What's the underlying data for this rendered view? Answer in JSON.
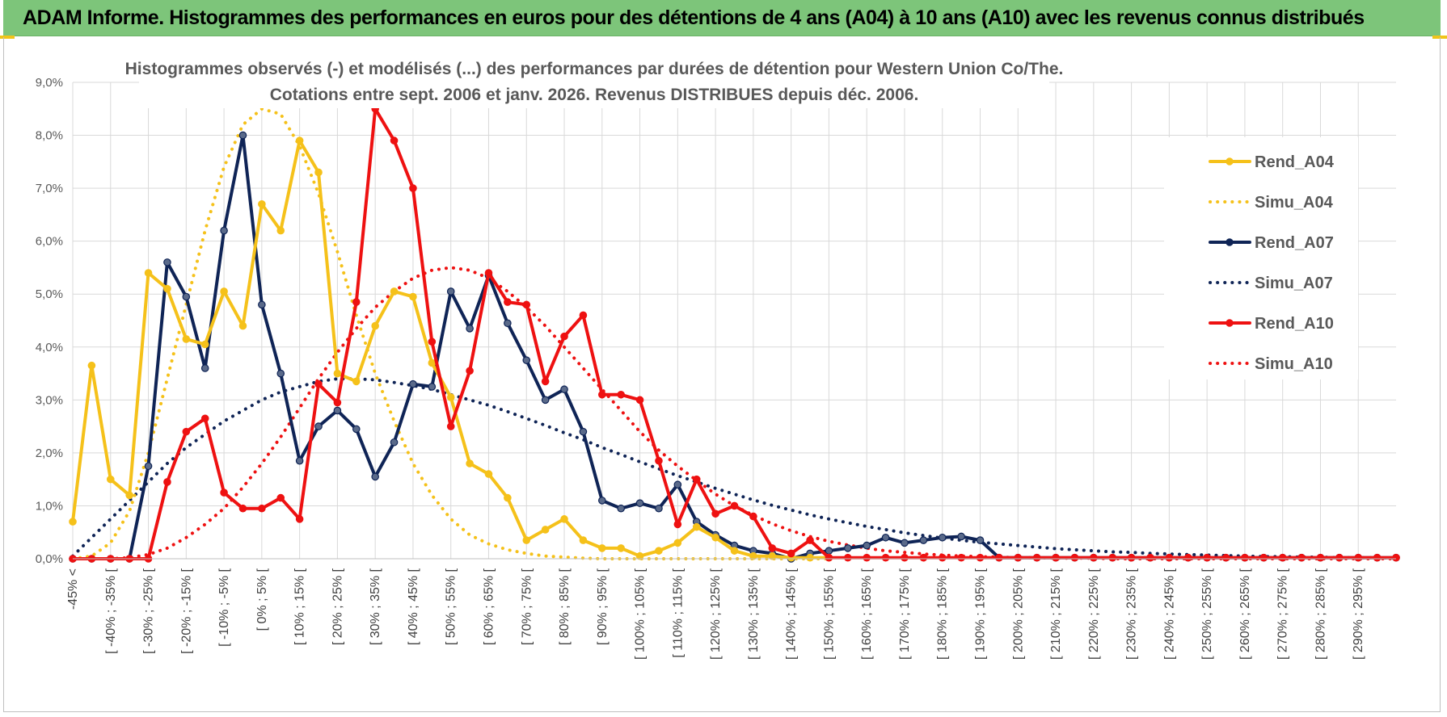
{
  "header": {
    "title": "ADAM Informe. Histogrammes des performances en euros pour des détentions de 4 ans (A04) à 10 ans (A10) avec les revenus connus distribués"
  },
  "chart_data": {
    "type": "line",
    "title_line1": "Histogrammes observés (-) et modélisés (...) des performances par durées de détention pour Western Union Co/The.",
    "title_line2": "Cotations entre sept. 2006 et janv. 2026. Revenus DISTRIBUES depuis déc. 2006.",
    "xlabel": "",
    "ylabel": "",
    "ylim": [
      0,
      9
    ],
    "yticks": [
      "0,0%",
      "1,0%",
      "2,0%",
      "3,0%",
      "4,0%",
      "5,0%",
      "6,0%",
      "7,0%",
      "8,0%",
      "9,0%"
    ],
    "grid": true,
    "legend_position": "right",
    "x_labels": [
      "-45% <",
      "[ -40% ; -35% [",
      "[ -30% ; -25% [",
      "[ -20% ; -15% [",
      "[ -10% ; -5% [",
      "[ 0% ; 5% [",
      "[ 10% ; 15% [",
      "[ 20% ; 25% [",
      "[ 30% ; 35% [",
      "[ 40% ; 45% [",
      "[ 50% ; 55% [",
      "[ 60% ; 65% [",
      "[ 70% ; 75% [",
      "[ 80% ; 85% [",
      "[ 90% ; 95% [",
      "[ 100% ; 105% [",
      "[ 110% ; 115% [",
      "[ 120% ; 125% [",
      "[ 130% ; 135% [",
      "[ 140% ; 145% [",
      "[ 150% ; 155% [",
      "[ 160% ; 165% [",
      "[ 170% ; 175% [",
      "[ 180% ; 185% [",
      "[ 190% ; 195% [",
      "[ 200% ; 205% [",
      "[ 210% ; 215% [",
      "[ 220% ; 225% [",
      "[ 230% ; 235% [",
      "[ 240% ; 245% [",
      "[ 250% ; 255% [",
      "[ 260% ; 265% [",
      "[ 270% ; 275% [",
      "[ 280% ; 285% [",
      "[ 290% ; 295% ["
    ],
    "series": [
      {
        "name": "Rend_A04",
        "color": "#f5c11a",
        "style": "solid",
        "markers": true,
        "values": [
          0.7,
          3.65,
          1.5,
          1.2,
          5.4,
          5.1,
          4.15,
          4.05,
          5.05,
          4.4,
          6.7,
          6.2,
          7.9,
          7.3,
          3.5,
          3.35,
          4.4,
          5.05,
          4.95,
          3.7,
          3.05,
          1.8,
          1.6,
          1.15,
          0.35,
          0.55,
          0.75,
          0.35,
          0.2,
          0.2,
          0.05,
          0.15,
          0.3,
          0.6,
          0.4,
          0.15,
          0.05,
          0.05,
          0.02,
          0.02,
          0.02
        ]
      },
      {
        "name": "Simu_A04",
        "color": "#f5c11a",
        "style": "dotted",
        "markers": false,
        "values": [
          0.0,
          0.05,
          0.3,
          0.9,
          2.0,
          3.4,
          4.8,
          6.2,
          7.4,
          8.2,
          8.5,
          8.4,
          7.8,
          6.9,
          5.8,
          4.6,
          3.5,
          2.6,
          1.8,
          1.2,
          0.75,
          0.45,
          0.28,
          0.17,
          0.1,
          0.05,
          0.03,
          0.01,
          0.0,
          0.0,
          0.0,
          0.0,
          0.0,
          0.0,
          0.0,
          0.0,
          0.0,
          0.0,
          0.0,
          0.0,
          0.0
        ]
      },
      {
        "name": "Rend_A07",
        "color": "#0f2456",
        "style": "solid",
        "markers": true,
        "values": [
          0.0,
          0.0,
          0.0,
          0.0,
          1.75,
          5.6,
          4.95,
          3.6,
          6.2,
          8.0,
          4.8,
          3.5,
          1.85,
          2.5,
          2.8,
          2.45,
          1.55,
          2.2,
          3.3,
          3.25,
          5.05,
          4.35,
          5.35,
          4.45,
          3.75,
          3.0,
          3.2,
          2.4,
          1.1,
          0.95,
          1.05,
          0.95,
          1.4,
          0.7,
          0.45,
          0.25,
          0.15,
          0.1,
          0.0,
          0.1,
          0.15,
          0.2,
          0.25,
          0.4,
          0.3,
          0.35,
          0.4,
          0.42,
          0.35,
          0.02,
          0.02,
          0.02,
          0.02,
          0.02,
          0.02,
          0.02,
          0.02,
          0.02,
          0.02,
          0.02,
          0.02,
          0.02,
          0.02,
          0.02,
          0.02,
          0.02,
          0.02,
          0.02,
          0.02,
          0.02,
          0.02
        ]
      },
      {
        "name": "Simu_A07",
        "color": "#0f2456",
        "style": "dotted",
        "markers": false,
        "values": [
          0.05,
          0.4,
          0.75,
          1.1,
          1.45,
          1.8,
          2.1,
          2.35,
          2.6,
          2.8,
          3.0,
          3.15,
          3.25,
          3.35,
          3.4,
          3.4,
          3.38,
          3.33,
          3.27,
          3.2,
          3.1,
          3.0,
          2.9,
          2.78,
          2.65,
          2.52,
          2.38,
          2.25,
          2.1,
          1.97,
          1.83,
          1.7,
          1.57,
          1.45,
          1.33,
          1.22,
          1.11,
          1.01,
          0.92,
          0.83,
          0.75,
          0.68,
          0.61,
          0.55,
          0.49,
          0.44,
          0.39,
          0.35,
          0.31,
          0.28,
          0.25,
          0.22,
          0.19,
          0.17,
          0.15,
          0.13,
          0.12,
          0.1,
          0.09,
          0.08,
          0.07,
          0.06,
          0.05,
          0.04,
          0.04,
          0.03,
          0.03,
          0.02,
          0.02,
          0.02,
          0.01
        ]
      },
      {
        "name": "Rend_A10",
        "color": "#ee1111",
        "style": "solid",
        "markers": true,
        "values": [
          0.0,
          0.0,
          0.0,
          0.0,
          0.0,
          1.45,
          2.4,
          2.65,
          1.25,
          0.95,
          0.95,
          1.15,
          0.75,
          3.3,
          2.95,
          4.85,
          8.5,
          7.9,
          7.0,
          4.1,
          2.5,
          3.55,
          5.4,
          4.85,
          4.8,
          3.35,
          4.2,
          4.6,
          3.1,
          3.1,
          3.0,
          1.85,
          0.65,
          1.5,
          0.85,
          1.0,
          0.8,
          0.2,
          0.1,
          0.35,
          0.02,
          0.02,
          0.02,
          0.02,
          0.02,
          0.02,
          0.02,
          0.02,
          0.02,
          0.02,
          0.02,
          0.02,
          0.02,
          0.02,
          0.02,
          0.02,
          0.02,
          0.02,
          0.02,
          0.02,
          0.02,
          0.02,
          0.02,
          0.02,
          0.02,
          0.02,
          0.02,
          0.02,
          0.02,
          0.02,
          0.02
        ]
      },
      {
        "name": "Simu_A10",
        "color": "#ee1111",
        "style": "dotted",
        "markers": false,
        "values": [
          0.0,
          0.0,
          0.0,
          0.02,
          0.08,
          0.2,
          0.4,
          0.65,
          0.95,
          1.35,
          1.8,
          2.3,
          2.85,
          3.4,
          3.9,
          4.35,
          4.75,
          5.05,
          5.3,
          5.45,
          5.5,
          5.45,
          5.3,
          5.05,
          4.75,
          4.4,
          4.0,
          3.6,
          3.2,
          2.8,
          2.4,
          2.05,
          1.75,
          1.48,
          1.22,
          1.0,
          0.82,
          0.66,
          0.53,
          0.42,
          0.33,
          0.26,
          0.2,
          0.15,
          0.12,
          0.09,
          0.07,
          0.05,
          0.04,
          0.03,
          0.02,
          0.02,
          0.01,
          0.01,
          0.01,
          0.0,
          0.0,
          0.0,
          0.0,
          0.0,
          0.0,
          0.0,
          0.0,
          0.0,
          0.0,
          0.0,
          0.0,
          0.0,
          0.0,
          0.0,
          0.0
        ]
      }
    ]
  }
}
